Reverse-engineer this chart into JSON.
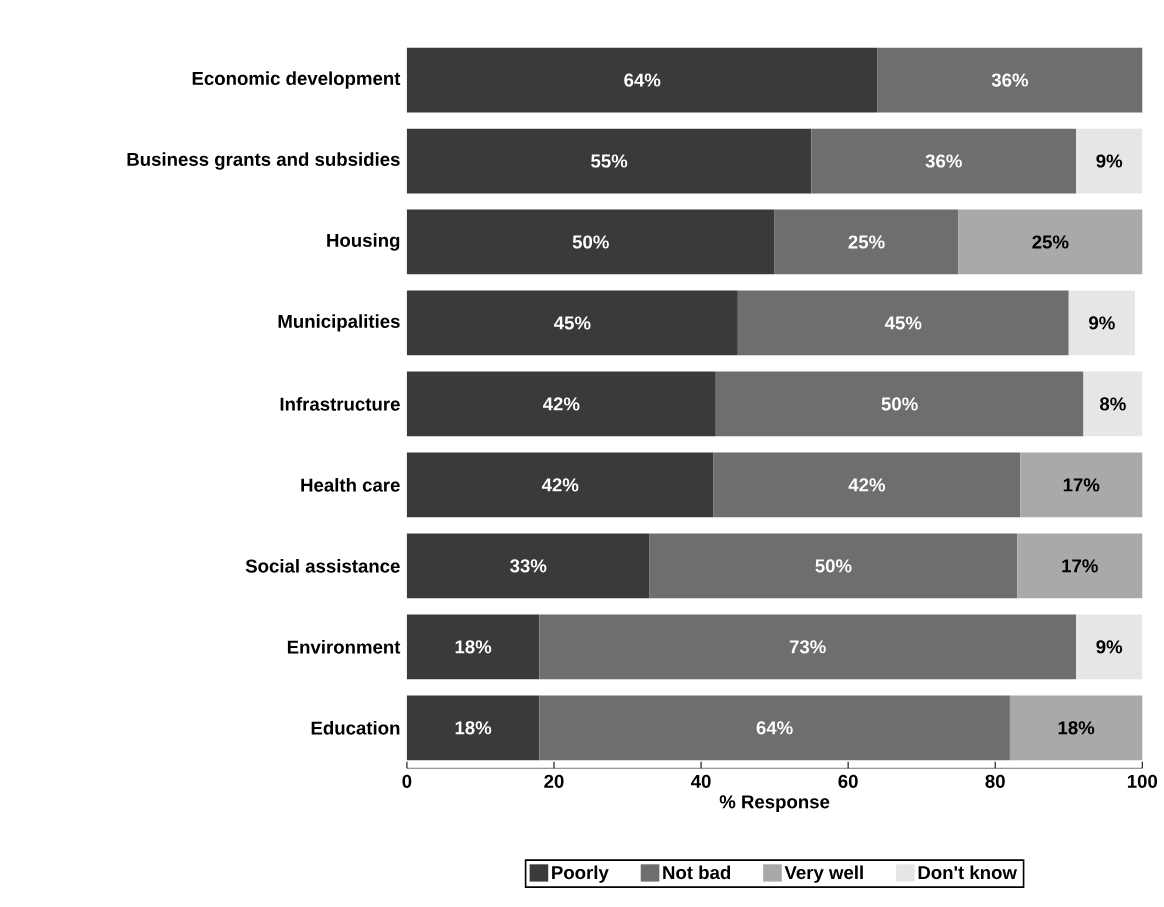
{
  "chart_data": {
    "type": "bar",
    "orientation": "horizontal",
    "stacked": true,
    "xlabel": "% Response",
    "categories": [
      "Economic development",
      "Business grants and subsidies",
      "Housing",
      "Municipalities",
      "Infrastructure",
      "Health care",
      "Social assistance",
      "Environment",
      "Education"
    ],
    "series": [
      {
        "name": "Poorly",
        "color": "#3a3a3a",
        "values": [
          64,
          55,
          50,
          45,
          42,
          41.7,
          33,
          18,
          18
        ],
        "value_labels": [
          "64%",
          "55%",
          "50%",
          "45%",
          "42%",
          "42%",
          "33%",
          "18%",
          "18%"
        ]
      },
      {
        "name": "Not bad",
        "color": "#6e6e6e",
        "values": [
          36,
          36,
          25,
          45,
          50,
          41.7,
          50,
          73,
          64
        ],
        "value_labels": [
          "36%",
          "36%",
          "25%",
          "45%",
          "50%",
          "42%",
          "50%",
          "73%",
          "64%"
        ]
      },
      {
        "name": "Very well",
        "color": "#a9a9a9",
        "values": [
          null,
          null,
          25,
          null,
          null,
          16.6,
          17,
          null,
          18
        ],
        "value_labels": [
          null,
          null,
          "25%",
          null,
          null,
          "17%",
          "17%",
          null,
          "18%"
        ]
      },
      {
        "name": "Don't know",
        "color": "#e6e6e6",
        "values": [
          null,
          9,
          null,
          9,
          8,
          null,
          null,
          9,
          null
        ],
        "value_labels": [
          null,
          "9%",
          null,
          "9%",
          "8%",
          null,
          null,
          "9%",
          null
        ]
      }
    ],
    "xlim": [
      0,
      100
    ],
    "xticks": [
      0,
      20,
      40,
      60,
      80,
      100
    ],
    "grid": false,
    "legend": "bottom"
  }
}
